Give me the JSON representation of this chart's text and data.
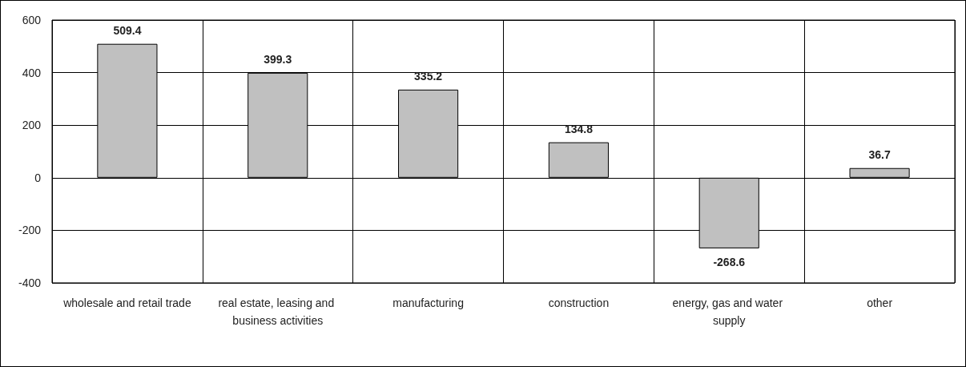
{
  "chart_data": {
    "type": "bar",
    "categories": [
      "wholesale and retail trade",
      "real estate, leasing and business activities",
      "manufacturing",
      "construction",
      "energy, gas and water supply",
      "other"
    ],
    "values": [
      509.4,
      399.3,
      335.2,
      134.8,
      -268.6,
      36.7
    ],
    "color": "#c0c0c0",
    "ylim": [
      -400,
      600
    ],
    "yticks": [
      -400,
      -200,
      0,
      200,
      400,
      600
    ],
    "grid": true,
    "data_labels": true
  }
}
